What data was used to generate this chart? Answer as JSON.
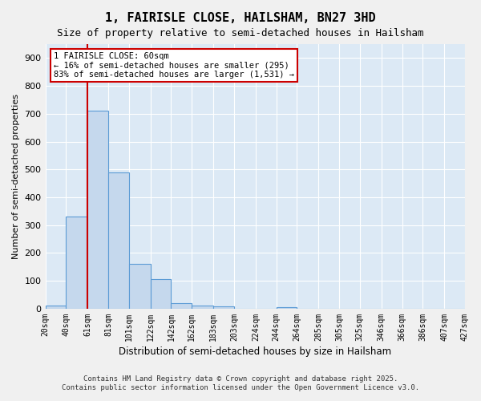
{
  "title": "1, FAIRISLE CLOSE, HAILSHAM, BN27 3HD",
  "subtitle": "Size of property relative to semi-detached houses in Hailsham",
  "xlabel": "Distribution of semi-detached houses by size in Hailsham",
  "ylabel": "Number of semi-detached properties",
  "bin_labels": [
    "20sqm",
    "40sqm",
    "61sqm",
    "81sqm",
    "101sqm",
    "122sqm",
    "142sqm",
    "162sqm",
    "183sqm",
    "203sqm",
    "224sqm",
    "244sqm",
    "264sqm",
    "285sqm",
    "305sqm",
    "325sqm",
    "346sqm",
    "366sqm",
    "386sqm",
    "407sqm",
    "427sqm"
  ],
  "bin_edges": [
    20,
    40,
    61,
    81,
    101,
    122,
    142,
    162,
    183,
    203,
    224,
    244,
    264,
    285,
    305,
    325,
    346,
    366,
    386,
    407,
    427
  ],
  "bar_values": [
    10,
    330,
    710,
    490,
    160,
    105,
    20,
    12,
    8,
    0,
    0,
    5,
    0,
    0,
    0,
    0,
    0,
    0,
    0,
    0
  ],
  "bar_color": "#c5d8ed",
  "bar_edge_color": "#5b9bd5",
  "property_size": 60,
  "property_line_x": 61,
  "annotation_title": "1 FAIRISLE CLOSE: 60sqm",
  "annotation_line1": "← 16% of semi-detached houses are smaller (295)",
  "annotation_line2": "83% of semi-detached houses are larger (1,531) →",
  "annotation_color": "#cc0000",
  "ylim": [
    0,
    950
  ],
  "yticks": [
    0,
    100,
    200,
    300,
    400,
    500,
    600,
    700,
    800,
    900
  ],
  "footer_line1": "Contains HM Land Registry data © Crown copyright and database right 2025.",
  "footer_line2": "Contains public sector information licensed under the Open Government Licence v3.0.",
  "bg_color": "#dce9f5",
  "plot_bg_color": "#dce9f5"
}
